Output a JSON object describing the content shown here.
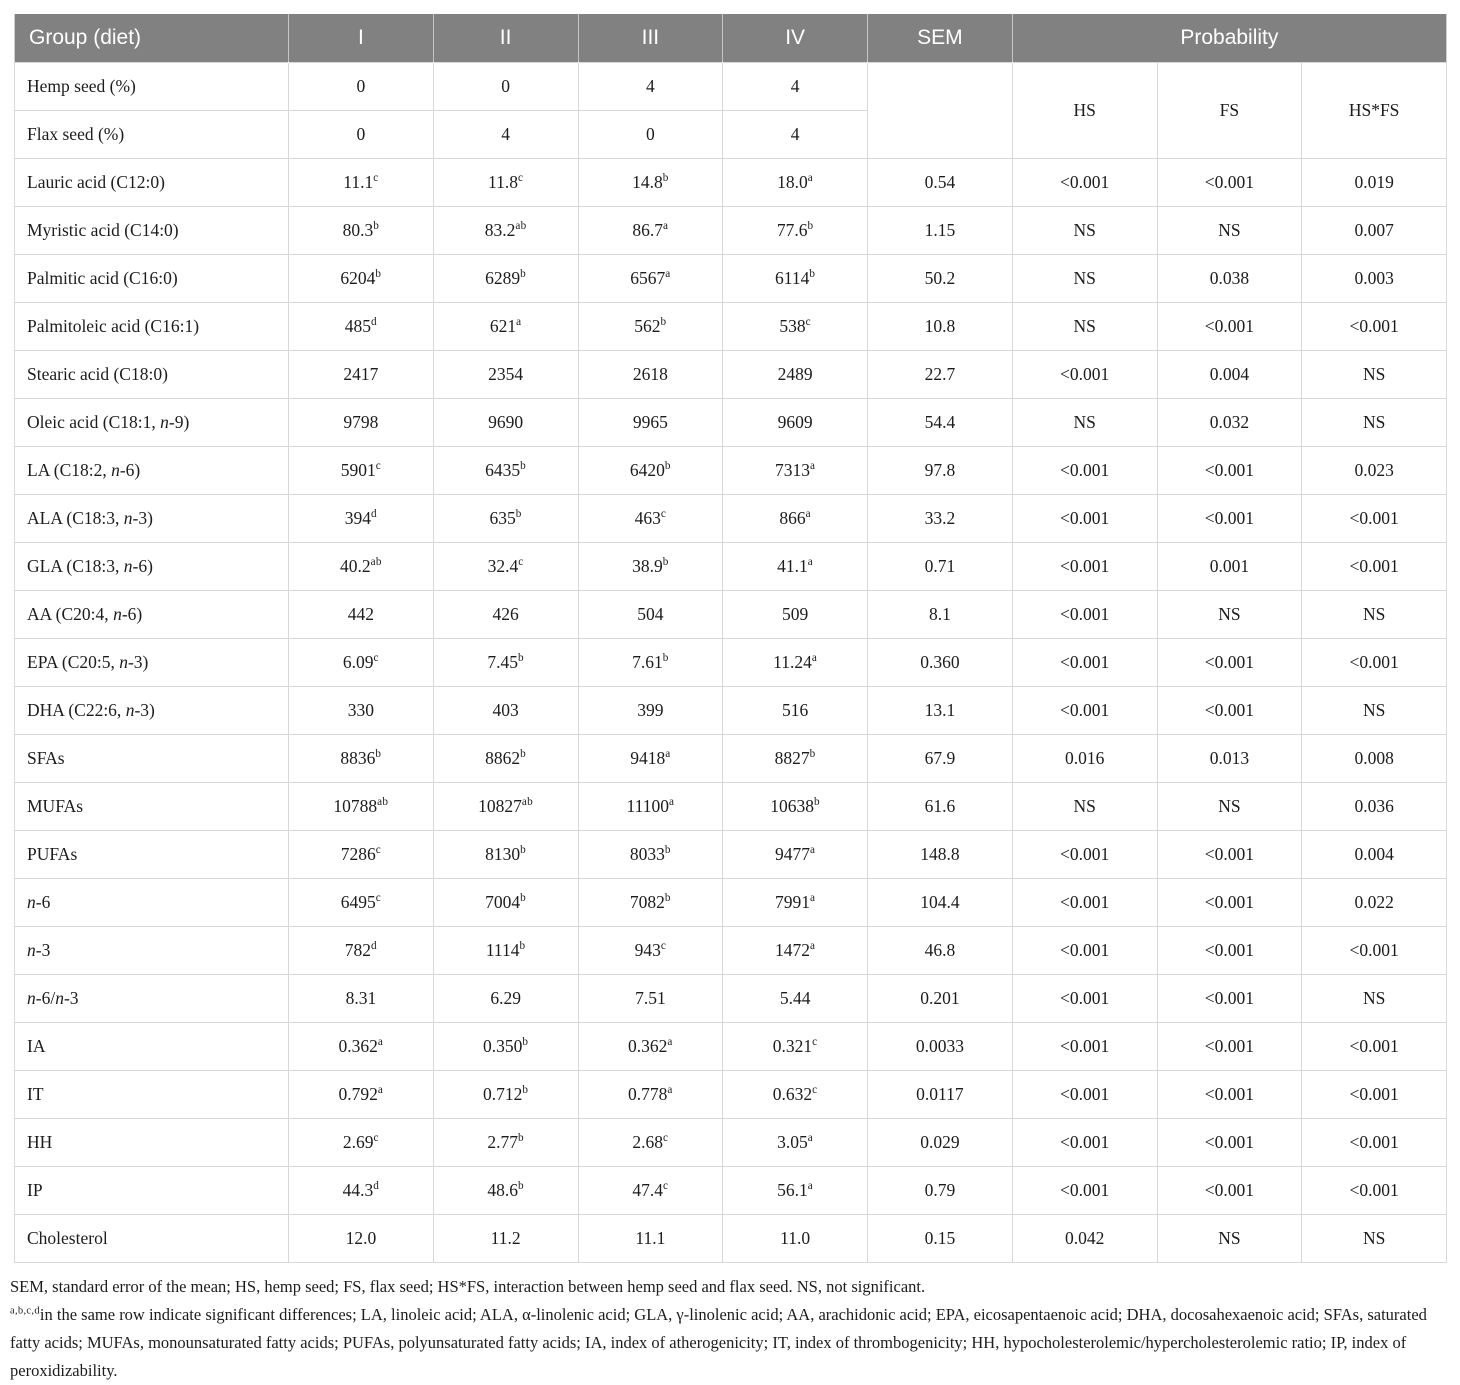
{
  "table": {
    "header": {
      "group_col": "Group (diet)",
      "cols": [
        "I",
        "II",
        "III",
        "IV"
      ],
      "sem": "SEM",
      "probability": "Probability",
      "prob_cols": [
        "HS",
        "FS",
        "HS*FS"
      ]
    },
    "diet_rows": [
      {
        "label": "Hemp seed (%)",
        "values": [
          "0",
          "0",
          "4",
          "4"
        ]
      },
      {
        "label": "Flax seed (%)",
        "values": [
          "0",
          "4",
          "0",
          "4"
        ]
      }
    ],
    "rows": [
      {
        "label": "Lauric acid (C12:0)",
        "values": [
          "11.1^c",
          "11.8^c",
          "14.8^b",
          "18.0^a"
        ],
        "sem": "0.54",
        "prob": [
          "<0.001",
          "<0.001",
          "0.019"
        ]
      },
      {
        "label": "Myristic acid (C14:0)",
        "values": [
          "80.3^b",
          "83.2^ab",
          "86.7^a",
          "77.6^b"
        ],
        "sem": "1.15",
        "prob": [
          "NS",
          "NS",
          "0.007"
        ]
      },
      {
        "label": "Palmitic acid (C16:0)",
        "values": [
          "6204^b",
          "6289^b",
          "6567^a",
          "6114^b"
        ],
        "sem": "50.2",
        "prob": [
          "NS",
          "0.038",
          "0.003"
        ]
      },
      {
        "label": "Palmitoleic acid (C16:1)",
        "values": [
          "485^d",
          "621^a",
          "562^b",
          "538^c"
        ],
        "sem": "10.8",
        "prob": [
          "NS",
          "<0.001",
          "<0.001"
        ]
      },
      {
        "label": "Stearic acid (C18:0)",
        "values": [
          "2417",
          "2354",
          "2618",
          "2489"
        ],
        "sem": "22.7",
        "prob": [
          "<0.001",
          "0.004",
          "NS"
        ]
      },
      {
        "label": "Oleic acid (C18:1, *n*-9)",
        "values": [
          "9798",
          "9690",
          "9965",
          "9609"
        ],
        "sem": "54.4",
        "prob": [
          "NS",
          "0.032",
          "NS"
        ]
      },
      {
        "label": "LA (C18:2, *n*-6)",
        "values": [
          "5901^c",
          "6435^b",
          "6420^b",
          "7313^a"
        ],
        "sem": "97.8",
        "prob": [
          "<0.001",
          "<0.001",
          "0.023"
        ]
      },
      {
        "label": "ALA (C18:3, *n*-3)",
        "values": [
          "394^d",
          "635^b",
          "463^c",
          "866^a"
        ],
        "sem": "33.2",
        "prob": [
          "<0.001",
          "<0.001",
          "<0.001"
        ]
      },
      {
        "label": "GLA (C18:3, *n*-6)",
        "values": [
          "40.2^ab",
          "32.4^c",
          "38.9^b",
          "41.1^a"
        ],
        "sem": "0.71",
        "prob": [
          "<0.001",
          "0.001",
          "<0.001"
        ]
      },
      {
        "label": "AA (C20:4, *n*-6)",
        "values": [
          "442",
          "426",
          "504",
          "509"
        ],
        "sem": "8.1",
        "prob": [
          "<0.001",
          "NS",
          "NS"
        ]
      },
      {
        "label": "EPA (C20:5, *n*-3)",
        "values": [
          "6.09^c",
          "7.45^b",
          "7.61^b",
          "11.24^a"
        ],
        "sem": "0.360",
        "prob": [
          "<0.001",
          "<0.001",
          "<0.001"
        ]
      },
      {
        "label": "DHA (C22:6, *n*-3)",
        "values": [
          "330",
          "403",
          "399",
          "516"
        ],
        "sem": "13.1",
        "prob": [
          "<0.001",
          "<0.001",
          "NS"
        ]
      },
      {
        "label": "SFAs",
        "values": [
          "8836^b",
          "8862^b",
          "9418^a",
          "8827^b"
        ],
        "sem": "67.9",
        "prob": [
          "0.016",
          "0.013",
          "0.008"
        ]
      },
      {
        "label": "MUFAs",
        "values": [
          "10788^ab",
          "10827^ab",
          "11100^a",
          "10638^b"
        ],
        "sem": "61.6",
        "prob": [
          "NS",
          "NS",
          "0.036"
        ]
      },
      {
        "label": "PUFAs",
        "values": [
          "7286^c",
          "8130^b",
          "8033^b",
          "9477^a"
        ],
        "sem": "148.8",
        "prob": [
          "<0.001",
          "<0.001",
          "0.004"
        ]
      },
      {
        "label": "*n*-6",
        "values": [
          "6495^c",
          "7004^b",
          "7082^b",
          "7991^a"
        ],
        "sem": "104.4",
        "prob": [
          "<0.001",
          "<0.001",
          "0.022"
        ]
      },
      {
        "label": "*n*-3",
        "values": [
          "782^d",
          "1114^b",
          "943^c",
          "1472^a"
        ],
        "sem": "46.8",
        "prob": [
          "<0.001",
          "<0.001",
          "<0.001"
        ]
      },
      {
        "label": "*n*-6/*n*-3",
        "values": [
          "8.31",
          "6.29",
          "7.51",
          "5.44"
        ],
        "sem": "0.201",
        "prob": [
          "<0.001",
          "<0.001",
          "NS"
        ]
      },
      {
        "label": "IA",
        "values": [
          "0.362^a",
          "0.350^b",
          "0.362^a",
          "0.321^c"
        ],
        "sem": "0.0033",
        "prob": [
          "<0.001",
          "<0.001",
          "<0.001"
        ]
      },
      {
        "label": "IT",
        "values": [
          "0.792^a",
          "0.712^b",
          "0.778^a",
          "0.632^c"
        ],
        "sem": "0.0117",
        "prob": [
          "<0.001",
          "<0.001",
          "<0.001"
        ]
      },
      {
        "label": "HH",
        "values": [
          "2.69^c",
          "2.77^b",
          "2.68^c",
          "3.05^a"
        ],
        "sem": "0.029",
        "prob": [
          "<0.001",
          "<0.001",
          "<0.001"
        ]
      },
      {
        "label": "IP",
        "values": [
          "44.3^d",
          "48.6^b",
          "47.4^c",
          "56.1^a"
        ],
        "sem": "0.79",
        "prob": [
          "<0.001",
          "<0.001",
          "<0.001"
        ]
      },
      {
        "label": "Cholesterol",
        "values": [
          "12.0",
          "11.2",
          "11.1",
          "11.0"
        ],
        "sem": "0.15",
        "prob": [
          "0.042",
          "NS",
          "NS"
        ]
      }
    ]
  },
  "footnotes": {
    "line1": "SEM, standard error of the mean; HS, hemp seed; FS, flax seed; HS*FS, interaction between hemp seed and flax seed. NS, not significant.",
    "line2_sup": "a,b,c,d",
    "line2_text": "in the same row indicate significant differences; LA, linoleic acid; ALA, α-linolenic acid; GLA, γ-linolenic acid; AA, arachidonic acid; EPA, eicosapentaenoic acid; DHA, docosahexaenoic acid; SFAs, saturated fatty acids; MUFAs, monounsaturated fatty acids; PUFAs, polyunsaturated fatty acids; IA, index of atherogenicity; IT, index of thrombogenicity; HH, hypocholesterolemic/hypercholesterolemic ratio; IP, index of peroxidizability."
  }
}
